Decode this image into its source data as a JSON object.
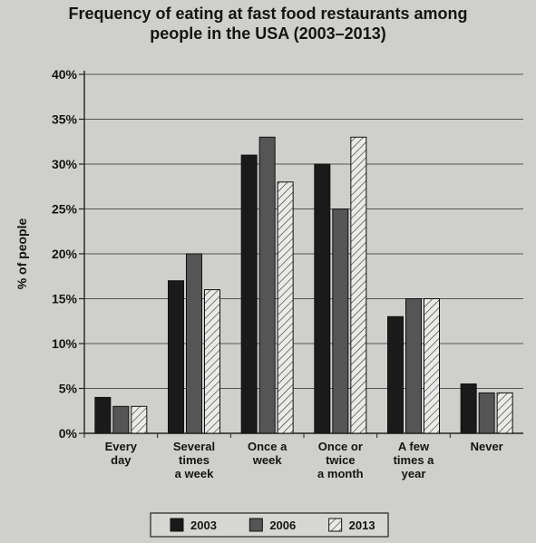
{
  "chart_data": {
    "type": "bar",
    "title": "Frequency of eating at fast food restaurants among\npeople in the USA (2003–2013)",
    "ylabel": "% of people",
    "xlabel": "",
    "ylim": [
      0,
      40
    ],
    "yticks": [
      0,
      5,
      10,
      15,
      20,
      25,
      30,
      35,
      40
    ],
    "ytick_labels": [
      "0%",
      "5%",
      "10%",
      "15%",
      "20%",
      "25%",
      "30%",
      "35%",
      "40%"
    ],
    "grid": "horizontal",
    "legend_position": "bottom",
    "categories": [
      [
        "Every",
        "day"
      ],
      [
        "Several",
        "times",
        "a week"
      ],
      [
        "Once a",
        "week"
      ],
      [
        "Once or",
        "twice",
        "a month"
      ],
      [
        "A few",
        "times a",
        "year"
      ],
      [
        "Never"
      ]
    ],
    "series": [
      {
        "name": "2003",
        "fill": "#1a1a1a",
        "pattern": "solid",
        "values": [
          4,
          17,
          31,
          30,
          13,
          5.5
        ]
      },
      {
        "name": "2006",
        "fill": "#555555",
        "pattern": "solid",
        "values": [
          3,
          20,
          33,
          25,
          15,
          4.5
        ]
      },
      {
        "name": "2013",
        "fill": "#e8e8e6",
        "pattern": "hatch",
        "values": [
          3,
          16,
          28,
          33,
          15,
          4.5
        ]
      }
    ]
  }
}
